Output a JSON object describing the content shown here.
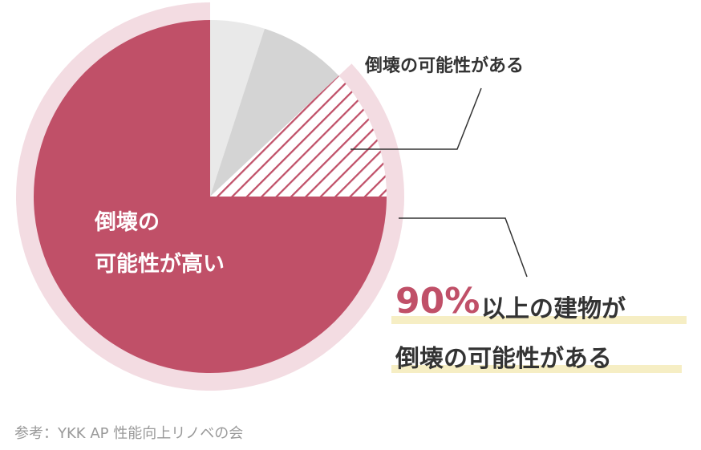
{
  "chart_data": {
    "type": "pie",
    "categories": [
      null,
      null,
      "倒壊の可能性がある",
      "倒壊の\n可能性が高い"
    ],
    "values": [
      5,
      8,
      12,
      75
    ],
    "colors": [
      "#e9e9e9",
      "#d4d4d4",
      "hatch",
      "#c05068"
    ],
    "hatch_color": "#c05068",
    "ring_color": "#f3dce2",
    "highlight": "90%",
    "highlight_text": "以上の建物が",
    "highlight_text2": "倒壊の可能性がある",
    "source": "参考：YKK AP 性能向上リノベの会"
  }
}
